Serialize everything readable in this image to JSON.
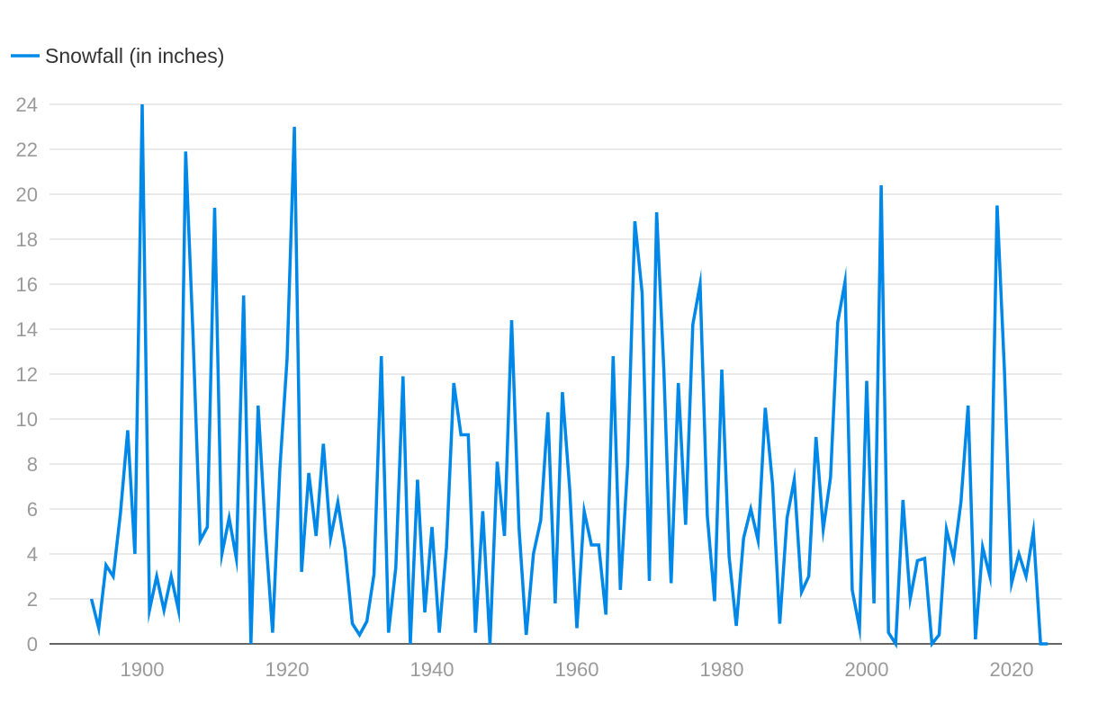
{
  "chart_data": {
    "type": "line",
    "title": "",
    "xlabel": "",
    "ylabel": "",
    "legend_position": "top-left",
    "grid": true,
    "xlim": [
      1893,
      2025
    ],
    "ylim": [
      0,
      24
    ],
    "x_ticks": [
      1900,
      1920,
      1940,
      1960,
      1980,
      2000,
      2020
    ],
    "y_ticks": [
      0,
      2,
      4,
      6,
      8,
      10,
      12,
      14,
      16,
      18,
      20,
      22,
      24
    ],
    "x_start": 1893,
    "series": [
      {
        "name": "Snowfall (in inches)",
        "color": "#0088e8",
        "values": [
          2,
          0.7,
          3.5,
          3,
          5.8,
          9.5,
          4,
          24,
          1.5,
          3,
          1.5,
          3,
          1.5,
          21.9,
          13.8,
          4.6,
          5.2,
          19.4,
          4,
          5.6,
          3.8,
          15.5,
          0,
          10.6,
          5.0,
          0.5,
          7.8,
          12.7,
          23,
          3.2,
          7.6,
          4.8,
          8.9,
          4.7,
          6.3,
          4.2,
          0.9,
          0.4,
          1.0,
          3.1,
          12.8,
          0.5,
          3.4,
          11.9,
          0,
          7.3,
          1.4,
          5.2,
          0.5,
          4.3,
          11.6,
          9.3,
          9.3,
          0.5,
          5.9,
          0,
          8.1,
          4.8,
          14.4,
          5.2,
          0.4,
          4.0,
          5.5,
          10.3,
          1.8,
          11.2,
          6.9,
          0.7,
          5.9,
          4.4,
          4.4,
          1.3,
          12.8,
          2.4,
          8.0,
          18.8,
          15.6,
          2.8,
          19.2,
          12.2,
          2.7,
          11.6,
          5.3,
          14.2,
          16.0,
          5.7,
          1.9,
          12.2,
          3.9,
          0.8,
          4.7,
          6.0,
          4.6,
          10.5,
          7.1,
          0.9,
          5.6,
          7.3,
          2.3,
          3.0,
          9.2,
          5.1,
          7.4,
          14.3,
          16.1,
          2.4,
          0.7,
          11.7,
          1.8,
          20.4,
          0.5,
          0,
          6.4,
          2.0,
          3.7,
          3.8,
          0,
          0.4,
          5.1,
          3.8,
          6.3,
          10.6,
          0.2,
          4.3,
          3.0,
          19.5,
          12.2,
          2.7,
          4.0,
          3.0,
          5.0,
          0,
          0
        ]
      }
    ]
  }
}
